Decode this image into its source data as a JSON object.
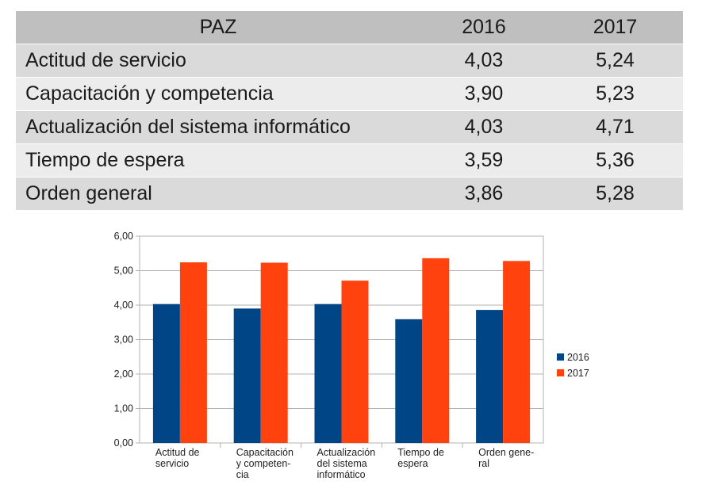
{
  "table": {
    "header": [
      "PAZ",
      "2016",
      "2017"
    ],
    "rows": [
      [
        "Actitud de servicio",
        "4,03",
        "5,24"
      ],
      [
        "Capacitación y competencia",
        "3,90",
        "5,23"
      ],
      [
        "Actualización del sistema informático",
        "4,03",
        "4,71"
      ],
      [
        "Tiempo de espera",
        "3,59",
        "5,36"
      ],
      [
        "Orden general",
        "3,86",
        "5,28"
      ]
    ]
  },
  "chart_data": {
    "type": "bar",
    "categories": [
      [
        "Actitud de",
        "servicio"
      ],
      [
        "Capacitación",
        "y competen-",
        "cia"
      ],
      [
        "Actualización",
        "del sistema",
        "informático"
      ],
      [
        "Tiempo de",
        "espera"
      ],
      [
        "Orden gene-",
        "ral"
      ]
    ],
    "series": [
      {
        "name": "2016",
        "color": "#004586",
        "values": [
          4.03,
          3.9,
          4.03,
          3.59,
          3.86
        ]
      },
      {
        "name": "2017",
        "color": "#ff420e",
        "values": [
          5.24,
          5.23,
          4.71,
          5.36,
          5.28
        ]
      }
    ],
    "ylim": [
      0,
      6
    ],
    "yticks": [
      "0,00",
      "1,00",
      "2,00",
      "3,00",
      "4,00",
      "5,00",
      "6,00"
    ],
    "grid": true,
    "legend": "right",
    "title": "",
    "xlabel": "",
    "ylabel": ""
  }
}
